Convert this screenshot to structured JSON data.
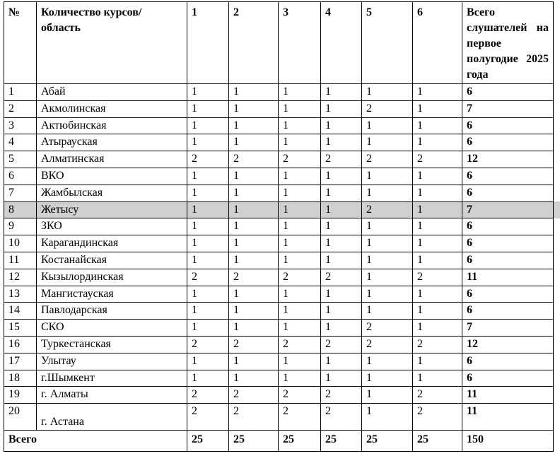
{
  "table": {
    "header": [
      "№",
      "Количество курсов/ область",
      "1",
      "2",
      "3",
      "4",
      "5",
      "6",
      "Всего слушателей на первое полугодие 2025 года"
    ],
    "rows": [
      [
        "1",
        "Абай",
        "1",
        "1",
        "1",
        "1",
        "1",
        "1",
        "6"
      ],
      [
        "2",
        "Акмолинская",
        "1",
        "1",
        "1",
        "1",
        "2",
        "1",
        "7"
      ],
      [
        "3",
        "Актюбинская",
        "1",
        "1",
        "1",
        "1",
        "1",
        "1",
        "6"
      ],
      [
        "4",
        "Атырауская",
        "1",
        "1",
        "1",
        "1",
        "1",
        "1",
        "6"
      ],
      [
        "5",
        "Алматинская",
        "2",
        "2",
        "2",
        "2",
        "2",
        "2",
        "12"
      ],
      [
        "6",
        "ВКО",
        "1",
        "1",
        "1",
        "1",
        "1",
        "1",
        "6"
      ],
      [
        "7",
        "Жамбылская",
        "1",
        "1",
        "1",
        "1",
        "1",
        "1",
        "6"
      ],
      [
        "8",
        "Жетысу",
        "1",
        "1",
        "1",
        "1",
        "2",
        "1",
        "7"
      ],
      [
        "9",
        "ЗКО",
        "1",
        "1",
        "1",
        "1",
        "1",
        "1",
        "6"
      ],
      [
        "10",
        "Карагандинская",
        "1",
        "1",
        "1",
        "1",
        "1",
        "1",
        "6"
      ],
      [
        "11",
        "Костанайская",
        "1",
        "1",
        "1",
        "1",
        "1",
        "1",
        "6"
      ],
      [
        "12",
        "Кызылординская",
        "2",
        "2",
        "2",
        "2",
        "1",
        "2",
        "11"
      ],
      [
        "13",
        "Мангистауская",
        "1",
        "1",
        "1",
        "1",
        "1",
        "1",
        "6"
      ],
      [
        "14",
        "Павлодарская",
        "1",
        "1",
        "1",
        "1",
        "1",
        "1",
        "6"
      ],
      [
        "15",
        "СКО",
        "1",
        "1",
        "1",
        "1",
        "2",
        "1",
        "7"
      ],
      [
        "16",
        "Туркестанская",
        "2",
        "2",
        "2",
        "2",
        "2",
        "2",
        "12"
      ],
      [
        "17",
        "Улытау",
        "1",
        "1",
        "1",
        "1",
        "1",
        "1",
        "6"
      ],
      [
        "18",
        "г.Шымкент",
        "1",
        "1",
        "1",
        "1",
        "1",
        "1",
        "6"
      ],
      [
        "19",
        "г. Алматы",
        "2",
        "2",
        "2",
        "2",
        "1",
        "2",
        "11"
      ],
      [
        "20",
        "г. Астана",
        "2",
        "2",
        "2",
        "2",
        "1",
        "2",
        "11"
      ]
    ],
    "footer": [
      "Всего",
      "25",
      "25",
      "25",
      "25",
      "25",
      "25",
      "150"
    ]
  }
}
